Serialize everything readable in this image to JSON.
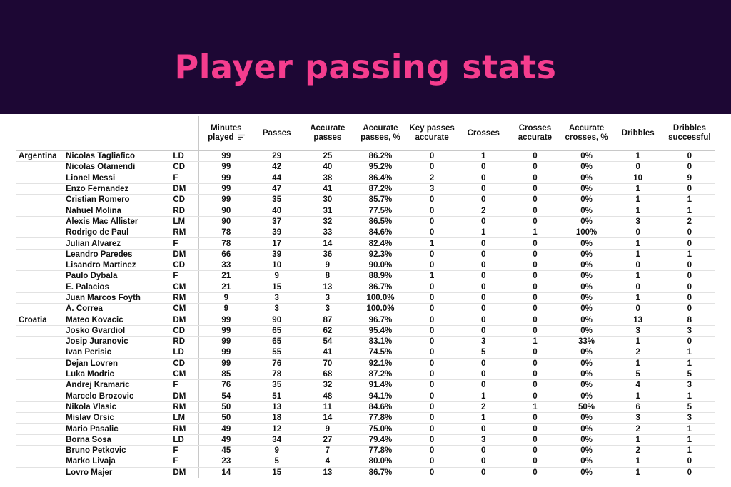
{
  "title": "Player passing stats",
  "columns": [
    "Minutes played",
    "Passes",
    "Accurate passes",
    "Accurate passes, %",
    "Key passes accurate",
    "Crosses",
    "Crosses accurate",
    "Accurate crosses, %",
    "Dribbles",
    "Dribbles successful"
  ],
  "rows": [
    {
      "team": "Argentina",
      "player": "Nicolas Tagliafico",
      "pos": "LD",
      "vals": [
        "99",
        "29",
        "25",
        "86.2%",
        "0",
        "1",
        "0",
        "0%",
        "1",
        "0"
      ]
    },
    {
      "team": "",
      "player": "Nicolas Otamendi",
      "pos": "CD",
      "vals": [
        "99",
        "42",
        "40",
        "95.2%",
        "0",
        "0",
        "0",
        "0%",
        "0",
        "0"
      ]
    },
    {
      "team": "",
      "player": "Lionel Messi",
      "pos": "F",
      "vals": [
        "99",
        "44",
        "38",
        "86.4%",
        "2",
        "0",
        "0",
        "0%",
        "10",
        "9"
      ]
    },
    {
      "team": "",
      "player": "Enzo Fernandez",
      "pos": "DM",
      "vals": [
        "99",
        "47",
        "41",
        "87.2%",
        "3",
        "0",
        "0",
        "0%",
        "1",
        "0"
      ]
    },
    {
      "team": "",
      "player": "Cristian Romero",
      "pos": "CD",
      "vals": [
        "99",
        "35",
        "30",
        "85.7%",
        "0",
        "0",
        "0",
        "0%",
        "1",
        "1"
      ]
    },
    {
      "team": "",
      "player": "Nahuel Molina",
      "pos": "RD",
      "vals": [
        "90",
        "40",
        "31",
        "77.5%",
        "0",
        "2",
        "0",
        "0%",
        "1",
        "1"
      ]
    },
    {
      "team": "",
      "player": "Alexis Mac Allister",
      "pos": "LM",
      "vals": [
        "90",
        "37",
        "32",
        "86.5%",
        "0",
        "0",
        "0",
        "0%",
        "3",
        "2"
      ]
    },
    {
      "team": "",
      "player": "Rodrigo de Paul",
      "pos": "RM",
      "vals": [
        "78",
        "39",
        "33",
        "84.6%",
        "0",
        "1",
        "1",
        "100%",
        "0",
        "0"
      ]
    },
    {
      "team": "",
      "player": "Julian Alvarez",
      "pos": "F",
      "vals": [
        "78",
        "17",
        "14",
        "82.4%",
        "1",
        "0",
        "0",
        "0%",
        "1",
        "0"
      ]
    },
    {
      "team": "",
      "player": "Leandro Paredes",
      "pos": "DM",
      "vals": [
        "66",
        "39",
        "36",
        "92.3%",
        "0",
        "0",
        "0",
        "0%",
        "1",
        "1"
      ]
    },
    {
      "team": "",
      "player": "Lisandro Martinez",
      "pos": "CD",
      "vals": [
        "33",
        "10",
        "9",
        "90.0%",
        "0",
        "0",
        "0",
        "0%",
        "0",
        "0"
      ]
    },
    {
      "team": "",
      "player": "Paulo Dybala",
      "pos": "F",
      "vals": [
        "21",
        "9",
        "8",
        "88.9%",
        "1",
        "0",
        "0",
        "0%",
        "1",
        "0"
      ]
    },
    {
      "team": "",
      "player": "E. Palacios",
      "pos": "CM",
      "vals": [
        "21",
        "15",
        "13",
        "86.7%",
        "0",
        "0",
        "0",
        "0%",
        "0",
        "0"
      ]
    },
    {
      "team": "",
      "player": "Juan Marcos Foyth",
      "pos": "RM",
      "vals": [
        "9",
        "3",
        "3",
        "100.0%",
        "0",
        "0",
        "0",
        "0%",
        "1",
        "0"
      ]
    },
    {
      "team": "",
      "player": "A. Correa",
      "pos": "CM",
      "vals": [
        "9",
        "3",
        "3",
        "100.0%",
        "0",
        "0",
        "0",
        "0%",
        "0",
        "0"
      ]
    },
    {
      "team": "Croatia",
      "player": "Mateo Kovacic",
      "pos": "DM",
      "vals": [
        "99",
        "90",
        "87",
        "96.7%",
        "0",
        "0",
        "0",
        "0%",
        "13",
        "8"
      ]
    },
    {
      "team": "",
      "player": "Josko Gvardiol",
      "pos": "CD",
      "vals": [
        "99",
        "65",
        "62",
        "95.4%",
        "0",
        "0",
        "0",
        "0%",
        "3",
        "3"
      ]
    },
    {
      "team": "",
      "player": "Josip Juranovic",
      "pos": "RD",
      "vals": [
        "99",
        "65",
        "54",
        "83.1%",
        "0",
        "3",
        "1",
        "33%",
        "1",
        "0"
      ]
    },
    {
      "team": "",
      "player": "Ivan Perisic",
      "pos": "LD",
      "vals": [
        "99",
        "55",
        "41",
        "74.5%",
        "0",
        "5",
        "0",
        "0%",
        "2",
        "1"
      ]
    },
    {
      "team": "",
      "player": "Dejan Lovren",
      "pos": "CD",
      "vals": [
        "99",
        "76",
        "70",
        "92.1%",
        "0",
        "0",
        "0",
        "0%",
        "1",
        "1"
      ]
    },
    {
      "team": "",
      "player": "Luka Modric",
      "pos": "CM",
      "vals": [
        "85",
        "78",
        "68",
        "87.2%",
        "0",
        "0",
        "0",
        "0%",
        "5",
        "5"
      ]
    },
    {
      "team": "",
      "player": "Andrej Kramaric",
      "pos": "F",
      "vals": [
        "76",
        "35",
        "32",
        "91.4%",
        "0",
        "0",
        "0",
        "0%",
        "4",
        "3"
      ]
    },
    {
      "team": "",
      "player": "Marcelo Brozovic",
      "pos": "DM",
      "vals": [
        "54",
        "51",
        "48",
        "94.1%",
        "0",
        "1",
        "0",
        "0%",
        "1",
        "1"
      ]
    },
    {
      "team": "",
      "player": "Nikola Vlasic",
      "pos": "RM",
      "vals": [
        "50",
        "13",
        "11",
        "84.6%",
        "0",
        "2",
        "1",
        "50%",
        "6",
        "5"
      ]
    },
    {
      "team": "",
      "player": "Mislav Orsic",
      "pos": "LM",
      "vals": [
        "50",
        "18",
        "14",
        "77.8%",
        "0",
        "1",
        "0",
        "0%",
        "3",
        "3"
      ]
    },
    {
      "team": "",
      "player": "Mario Pasalic",
      "pos": "RM",
      "vals": [
        "49",
        "12",
        "9",
        "75.0%",
        "0",
        "0",
        "0",
        "0%",
        "2",
        "1"
      ]
    },
    {
      "team": "",
      "player": "Borna Sosa",
      "pos": "LD",
      "vals": [
        "49",
        "34",
        "27",
        "79.4%",
        "0",
        "3",
        "0",
        "0%",
        "1",
        "1"
      ]
    },
    {
      "team": "",
      "player": "Bruno Petkovic",
      "pos": "F",
      "vals": [
        "45",
        "9",
        "7",
        "77.8%",
        "0",
        "0",
        "0",
        "0%",
        "2",
        "1"
      ]
    },
    {
      "team": "",
      "player": "Marko Livaja",
      "pos": "F",
      "vals": [
        "23",
        "5",
        "4",
        "80.0%",
        "0",
        "0",
        "0",
        "0%",
        "1",
        "0"
      ]
    },
    {
      "team": "",
      "player": "Lovro Majer",
      "pos": "DM",
      "vals": [
        "14",
        "15",
        "13",
        "86.7%",
        "0",
        "0",
        "0",
        "0%",
        "1",
        "0"
      ]
    }
  ],
  "colors": {
    "banner_bg": "#1d0734",
    "title_color": "#f53d8e",
    "text": "#111111",
    "grid": "#e2e2e2"
  },
  "icons": {
    "sort": "sort-descending-icon"
  }
}
